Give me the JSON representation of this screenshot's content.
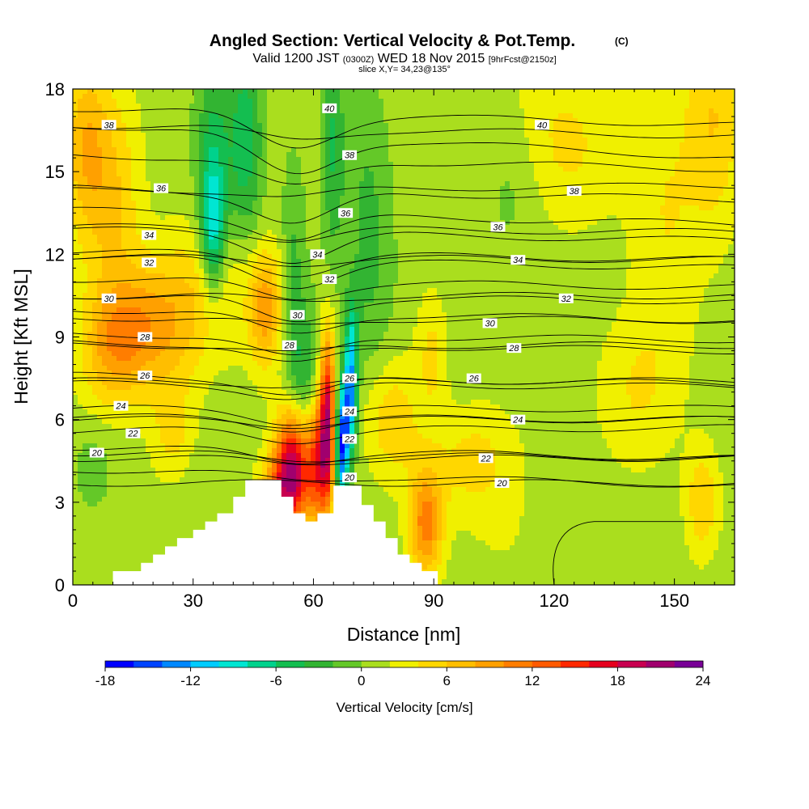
{
  "chart_data": {
    "type": "heatmap",
    "title": "Angled Section: Vertical Velocity & Pot.Temp.",
    "title_unit": "(C)",
    "subtitle_main_a": "Valid 1200 JST",
    "subtitle_zulu": "(0300Z)",
    "subtitle_main_b": "WED 18 Nov 2015",
    "subtitle_fcst": "[9hrFcst@2150z]",
    "subtitle2": "slice X,Y= 34,23@135°",
    "xlabel": "Distance [nm]",
    "ylabel": "Height [Kft MSL]",
    "xlim": [
      0,
      165
    ],
    "ylim": [
      0,
      18
    ],
    "x_ticks": [
      "0",
      "30",
      "60",
      "90",
      "120",
      "150"
    ],
    "y_ticks": [
      "0",
      "3",
      "6",
      "9",
      "12",
      "15",
      "18"
    ],
    "x_tick_values": [
      0,
      30,
      60,
      90,
      120,
      150
    ],
    "y_tick_values": [
      0,
      3,
      6,
      9,
      12,
      15,
      18
    ],
    "colorbar": {
      "label": "Vertical Velocity [cm/s]",
      "ticks": [
        "-18",
        "-12",
        "-6",
        "0",
        "6",
        "12",
        "18",
        "24"
      ],
      "tick_values": [
        -18,
        -12,
        -6,
        0,
        6,
        12,
        18,
        24
      ],
      "min": -18,
      "max": 24,
      "colors": [
        "#0000ff",
        "#0044ff",
        "#0088ff",
        "#00ccff",
        "#00e6d2",
        "#00d28c",
        "#14be50",
        "#32b432",
        "#64c828",
        "#aade1e",
        "#f0f000",
        "#ffd700",
        "#ffbe00",
        "#ffa000",
        "#ff7d00",
        "#ff5a00",
        "#ff2800",
        "#e6001e",
        "#c80050",
        "#a0006e",
        "#780096"
      ]
    },
    "terrain_profile": {
      "x": [
        0,
        10,
        10,
        17,
        17,
        20,
        20,
        23,
        23,
        26,
        26,
        30,
        30,
        33,
        33,
        36,
        36,
        40,
        40,
        43,
        43,
        52,
        52,
        55,
        55,
        58,
        58,
        61,
        61,
        65,
        65,
        72,
        72,
        75,
        75,
        78,
        78,
        81,
        81,
        84,
        84,
        87,
        87,
        91,
        91,
        165
      ],
      "y": [
        0,
        0,
        0.5,
        0.5,
        0.8,
        0.8,
        1.1,
        1.1,
        1.4,
        1.4,
        1.7,
        1.7,
        2.0,
        2.0,
        2.3,
        2.3,
        2.6,
        2.6,
        3.2,
        3.2,
        3.8,
        3.8,
        3.2,
        3.2,
        2.6,
        2.6,
        2.3,
        2.3,
        2.6,
        2.6,
        3.6,
        3.6,
        2.9,
        2.9,
        2.3,
        2.3,
        1.7,
        1.7,
        1.1,
        1.1,
        0.8,
        0.8,
        0.5,
        0.5,
        0,
        0
      ]
    },
    "isotherms": [
      {
        "label": "20",
        "y0": 4.6,
        "tilt": 0.0,
        "dip": 0.2,
        "lx": 6,
        "ly": 4.8
      },
      {
        "label": "20",
        "y0": 4.2,
        "tilt": -0.6,
        "dip": 0.2,
        "lx": 107,
        "ly": 3.7
      },
      {
        "label": "20",
        "y0": 3.7,
        "tilt": 0.0,
        "dip": 0.0,
        "lx": 69,
        "ly": 3.9
      },
      {
        "label": "22",
        "y0": 5.6,
        "tilt": 0.1,
        "dip": 0.4,
        "lx": 15,
        "ly": 5.5
      },
      {
        "label": "22",
        "y0": 5.0,
        "tilt": -0.4,
        "dip": 0.4,
        "lx": 69,
        "ly": 5.3
      },
      {
        "label": "22",
        "y0": 4.8,
        "tilt": -0.2,
        "dip": 0.2,
        "lx": 103,
        "ly": 4.6
      },
      {
        "label": "24",
        "y0": 6.4,
        "tilt": 0.0,
        "dip": 0.5,
        "lx": 12,
        "ly": 6.5
      },
      {
        "label": "24",
        "y0": 6.1,
        "tilt": -0.1,
        "dip": 0.4,
        "lx": 69,
        "ly": 6.3
      },
      {
        "label": "24",
        "y0": 6.0,
        "tilt": 0.0,
        "dip": 0.2,
        "lx": 111,
        "ly": 6.0
      },
      {
        "label": "26",
        "y0": 7.6,
        "tilt": -0.3,
        "dip": 0.6,
        "lx": 18,
        "ly": 7.6
      },
      {
        "label": "26",
        "y0": 7.3,
        "tilt": -0.1,
        "dip": 0.5,
        "lx": 69,
        "ly": 7.5
      },
      {
        "label": "26",
        "y0": 7.4,
        "tilt": 0.0,
        "dip": 0.2,
        "lx": 100,
        "ly": 7.5
      },
      {
        "label": "28",
        "y0": 9.1,
        "tilt": -0.2,
        "dip": 0.8,
        "lx": 18,
        "ly": 9.0
      },
      {
        "label": "28",
        "y0": 8.8,
        "tilt": -0.3,
        "dip": 0.7,
        "lx": 54,
        "ly": 8.7
      },
      {
        "label": "28",
        "y0": 8.7,
        "tilt": 0.0,
        "dip": 0.3,
        "lx": 110,
        "ly": 8.6
      },
      {
        "label": "30",
        "y0": 10.5,
        "tilt": -0.2,
        "dip": 0.9,
        "lx": 9,
        "ly": 10.4
      },
      {
        "label": "30",
        "y0": 10.0,
        "tilt": -0.4,
        "dip": 0.8,
        "lx": 56,
        "ly": 9.8
      },
      {
        "label": "30",
        "y0": 9.7,
        "tilt": -0.1,
        "dip": 0.3,
        "lx": 104,
        "ly": 9.5
      },
      {
        "label": "32",
        "y0": 11.9,
        "tilt": -0.4,
        "dip": 0.9,
        "lx": 19,
        "ly": 11.7
      },
      {
        "label": "32",
        "y0": 11.1,
        "tilt": -0.3,
        "dip": 0.6,
        "lx": 64,
        "ly": 11.1
      },
      {
        "label": "32",
        "y0": 10.5,
        "tilt": 0.0,
        "dip": 0.2,
        "lx": 123,
        "ly": 10.4
      },
      {
        "label": "34",
        "y0": 12.9,
        "tilt": -0.4,
        "dip": 1.0,
        "lx": 19,
        "ly": 12.7
      },
      {
        "label": "34",
        "y0": 12.1,
        "tilt": -0.3,
        "dip": 0.7,
        "lx": 61,
        "ly": 12.0
      },
      {
        "label": "34",
        "y0": 11.9,
        "tilt": -0.1,
        "dip": 0.2,
        "lx": 111,
        "ly": 11.8
      },
      {
        "label": "36",
        "y0": 14.4,
        "tilt": -0.4,
        "dip": 1.2,
        "lx": 22,
        "ly": 14.4
      },
      {
        "label": "36",
        "y0": 13.6,
        "tilt": -0.5,
        "dip": 0.9,
        "lx": 68,
        "ly": 13.5
      },
      {
        "label": "36",
        "y0": 13.0,
        "tilt": -0.2,
        "dip": 0.4,
        "lx": 106,
        "ly": 13.0
      },
      {
        "label": "38",
        "y0": 16.7,
        "tilt": -1.2,
        "dip": 1.4,
        "lx": 9,
        "ly": 16.7
      },
      {
        "label": "38",
        "y0": 15.6,
        "tilt": -0.5,
        "dip": 1.0,
        "lx": 69,
        "ly": 15.6
      },
      {
        "label": "38",
        "y0": 14.3,
        "tilt": 0.2,
        "dip": 0.3,
        "lx": 125,
        "ly": 14.3
      },
      {
        "label": "40",
        "y0": 17.3,
        "tilt": -0.6,
        "dip": 1.2,
        "lx": 64,
        "ly": 17.3
      },
      {
        "label": "40",
        "y0": 16.7,
        "tilt": -0.4,
        "dip": 0.4,
        "lx": 117,
        "ly": 16.7
      }
    ]
  }
}
